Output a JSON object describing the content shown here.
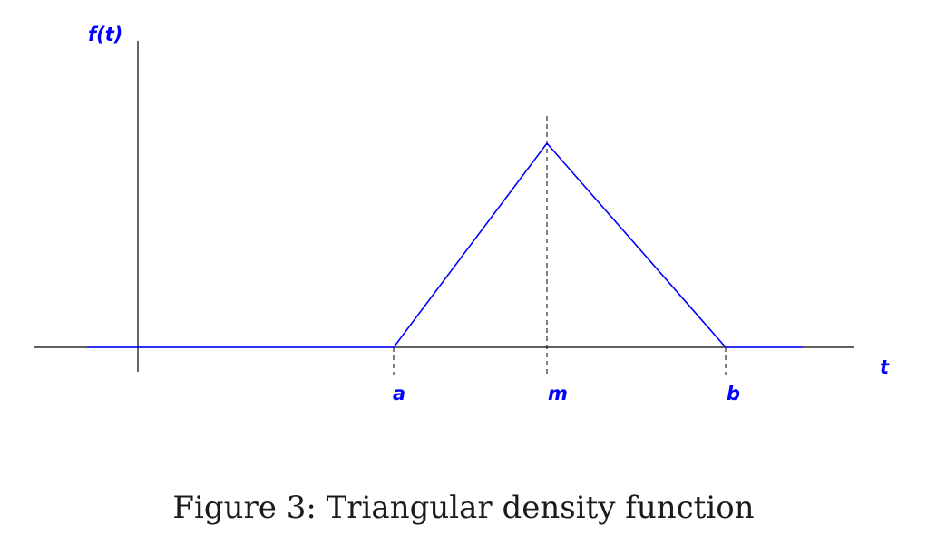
{
  "chart_data": {
    "type": "line",
    "title": "",
    "xlabel": "t",
    "ylabel": "f(t)",
    "x_ticks": [
      "a",
      "m",
      "b"
    ],
    "series": [
      {
        "x": [
          "",
          "a",
          "m",
          "b",
          ""
        ],
        "y": [
          0,
          0,
          1,
          0,
          0
        ]
      }
    ],
    "guide_lines": [
      "a",
      "m",
      "b"
    ],
    "line_color": "#0000ff",
    "axis_color": "#000000",
    "grid": false
  },
  "caption": "Figure 3: Triangular density function"
}
